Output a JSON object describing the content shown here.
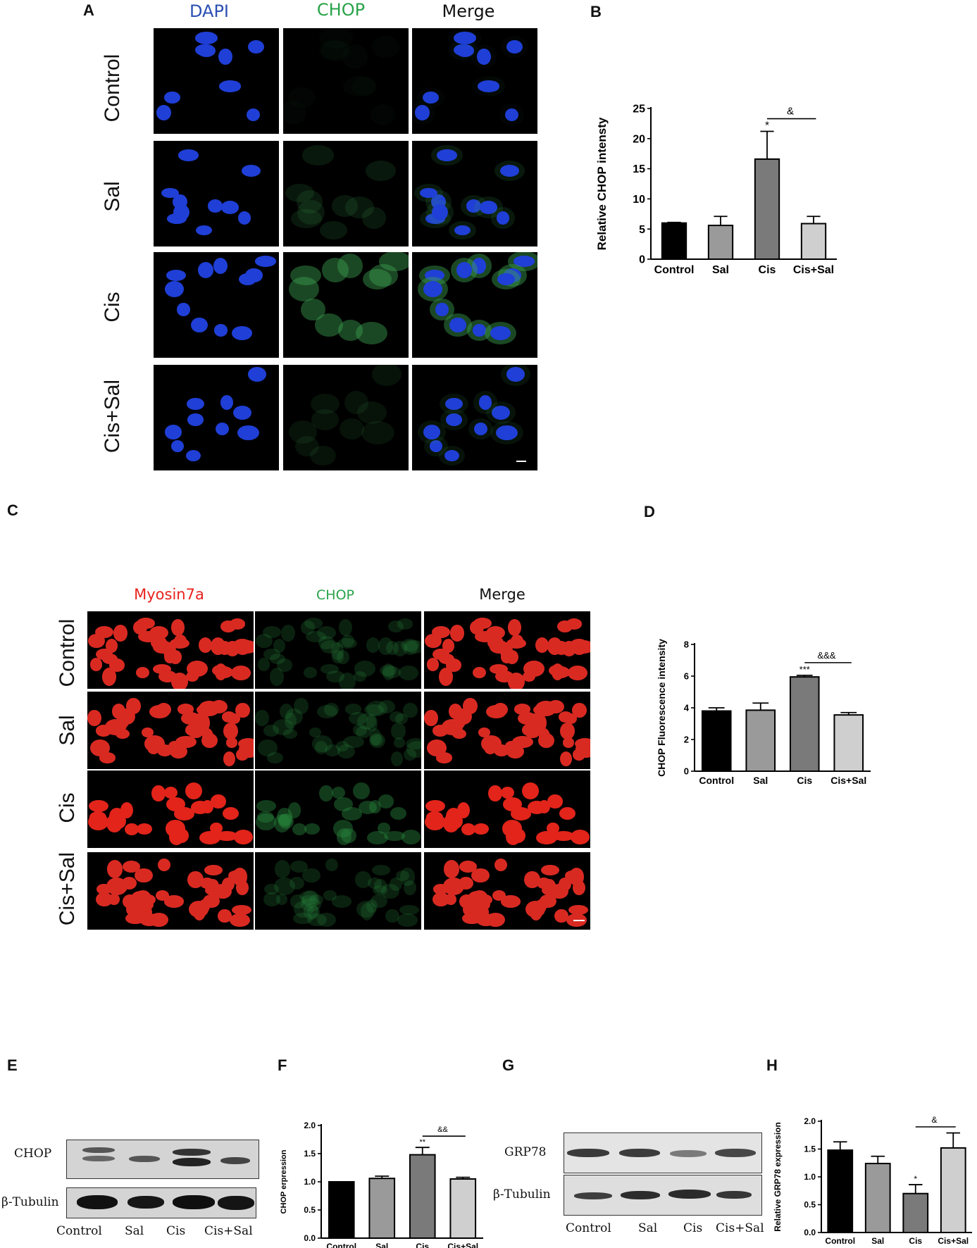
{
  "panels": {
    "A": "A",
    "B": "B",
    "C": "C",
    "D": "D",
    "E": "E",
    "F": "F",
    "G": "G",
    "H": "H"
  },
  "panel_a": {
    "columns": [
      "DAPI",
      "CHOP",
      "Merge"
    ],
    "rows": [
      "Control",
      "Sal",
      "Cis",
      "Cis+Sal"
    ],
    "colors": {
      "DAPI": "#2b4fb3",
      "CHOP": "#2aa34a",
      "Merge": "#111111"
    }
  },
  "panel_c": {
    "columns": [
      "Myosin7a",
      "CHOP",
      "Merge"
    ],
    "rows": [
      "Control",
      "Sal",
      "Cis",
      "Cis+Sal"
    ],
    "colors": {
      "Myosin7a": "#e8221c",
      "CHOP": "#2aa34a",
      "Merge": "#111111"
    }
  },
  "panel_e": {
    "labels": [
      "CHOP",
      "β-Tubulin"
    ],
    "lanes": [
      "Control",
      "Sal",
      "Cis",
      "Cis+Sal"
    ]
  },
  "panel_g": {
    "labels": [
      "GRP78",
      "β-Tubulin"
    ],
    "lanes": [
      "Control",
      "Sal",
      "Cis",
      "Cis+Sal"
    ]
  },
  "chart_data": [
    {
      "id": "B",
      "type": "bar",
      "categories": [
        "Control",
        "Sal",
        "Cis",
        "Cis+Sal"
      ],
      "values": [
        6.0,
        5.6,
        16.6,
        5.9
      ],
      "errors": [
        0.1,
        1.5,
        4.6,
        1.2
      ],
      "colors": [
        "#000000",
        "#9a9a9a",
        "#7a7a7a",
        "#cfcfcf"
      ],
      "ylabel": "Relative  CHOP intensty",
      "ylim": [
        0,
        25
      ],
      "yticks": [
        0,
        5,
        10,
        15,
        20,
        25
      ],
      "marks": [
        "",
        "",
        "*",
        ""
      ],
      "bracket": {
        "from": 2,
        "to": 3,
        "label": "&"
      }
    },
    {
      "id": "D",
      "type": "bar",
      "categories": [
        "Control",
        "Sal",
        "Cis",
        "Cis+Sal"
      ],
      "values": [
        3.8,
        3.85,
        5.95,
        3.55
      ],
      "errors": [
        0.2,
        0.45,
        0.1,
        0.15
      ],
      "colors": [
        "#000000",
        "#9a9a9a",
        "#7a7a7a",
        "#cfcfcf"
      ],
      "ylabel": "CHOP Fluorescence intensity",
      "ylim": [
        0,
        8
      ],
      "yticks": [
        0,
        2,
        4,
        6,
        8
      ],
      "marks": [
        "",
        "",
        "***",
        ""
      ],
      "bracket": {
        "from": 2,
        "to": 3,
        "label": "&&&"
      }
    },
    {
      "id": "F",
      "type": "bar",
      "categories": [
        "Control",
        "Sal",
        "Cis",
        "Cis+Sal"
      ],
      "values": [
        1.0,
        1.06,
        1.48,
        1.05
      ],
      "errors": [
        0.0,
        0.04,
        0.13,
        0.03
      ],
      "colors": [
        "#000000",
        "#9a9a9a",
        "#7a7a7a",
        "#cfcfcf"
      ],
      "ylabel": "CHOP erpression",
      "ylim": [
        0,
        2.0
      ],
      "yticks": [
        "0.0",
        "0.5",
        "1.0",
        "1.5",
        "2.0"
      ],
      "marks": [
        "",
        "",
        "**",
        ""
      ],
      "bracket": {
        "from": 2,
        "to": 3,
        "label": "&&"
      }
    },
    {
      "id": "H",
      "type": "bar",
      "categories": [
        "Control",
        "Sal",
        "Cis",
        "Cis+Sal"
      ],
      "values": [
        1.48,
        1.24,
        0.7,
        1.52
      ],
      "errors": [
        0.15,
        0.13,
        0.16,
        0.27
      ],
      "colors": [
        "#000000",
        "#9a9a9a",
        "#7a7a7a",
        "#cfcfcf"
      ],
      "ylabel": "Relative  GRP78 expression",
      "ylim": [
        0,
        2.0
      ],
      "yticks": [
        "0.0",
        "0.5",
        "1.0",
        "1.5",
        "2.0"
      ],
      "marks": [
        "",
        "",
        "*",
        ""
      ],
      "bracket": {
        "from": 2,
        "to": 3,
        "label": "&"
      }
    }
  ]
}
